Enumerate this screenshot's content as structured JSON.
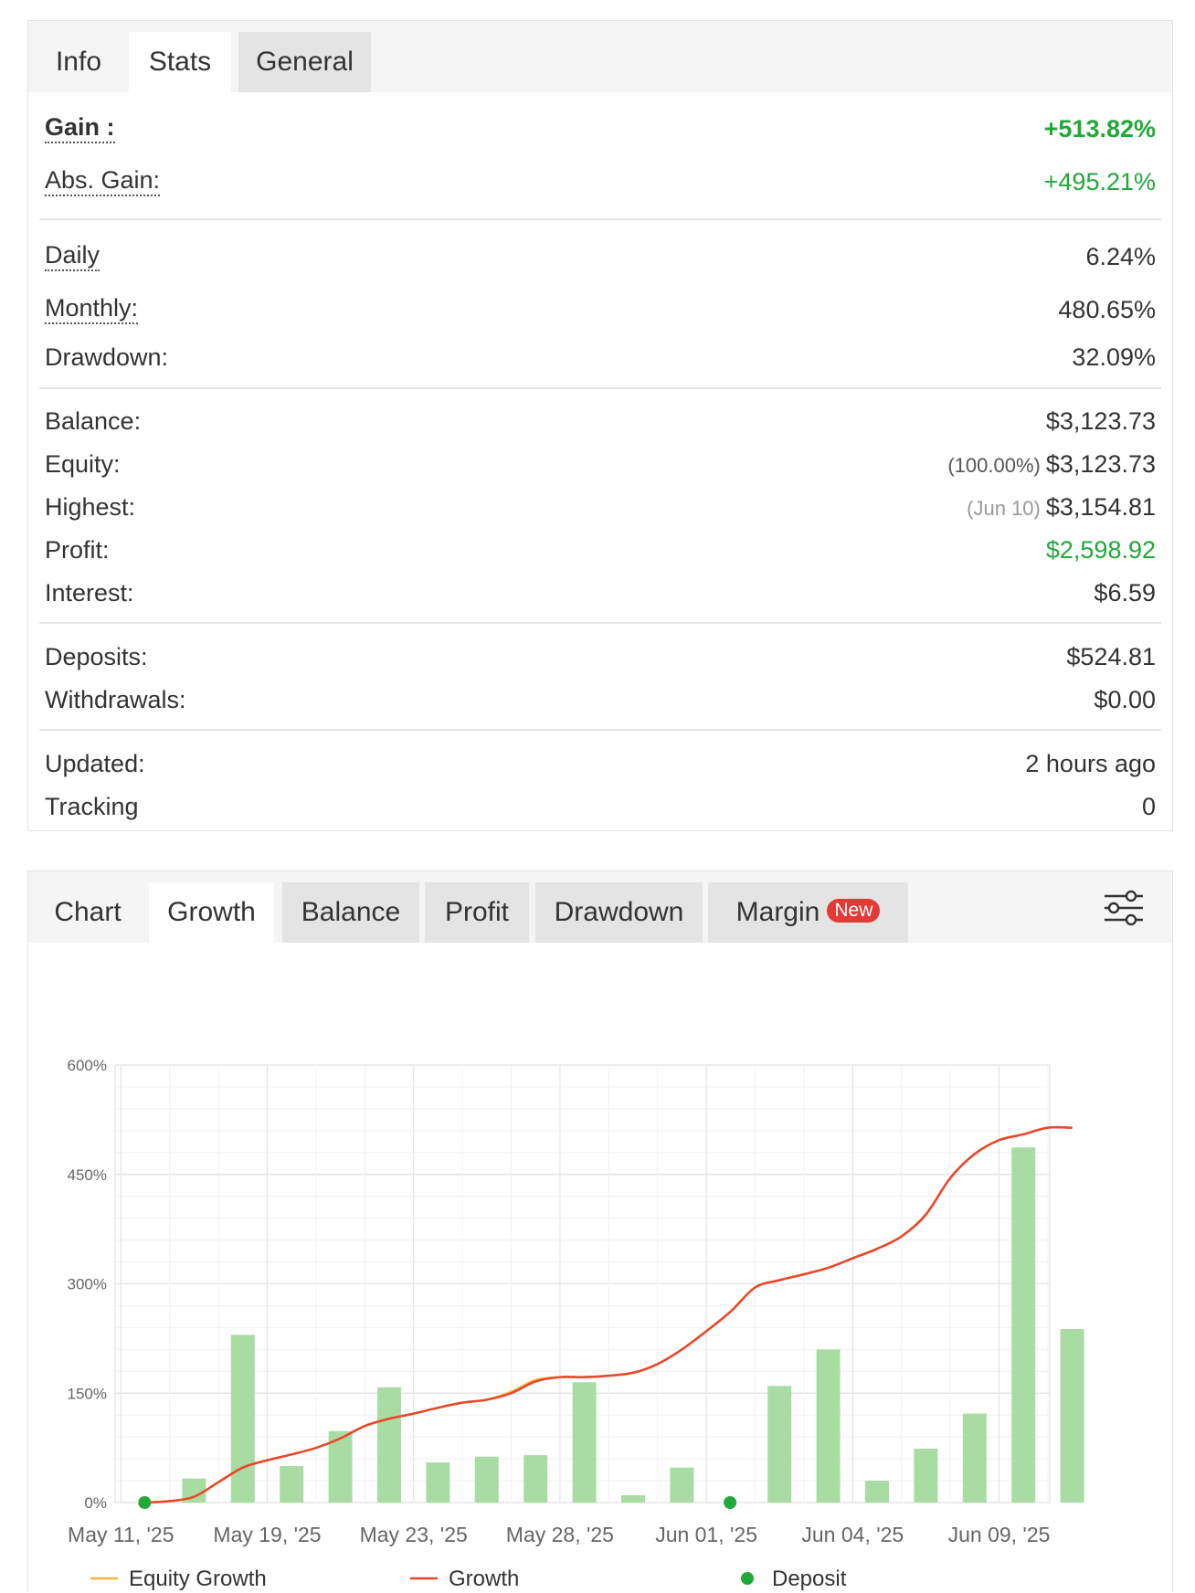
{
  "stats_panel": {
    "tabs": [
      {
        "label": "Info",
        "state": "label"
      },
      {
        "label": "Stats",
        "state": "active"
      },
      {
        "label": "General",
        "state": "inactive"
      }
    ],
    "gain": {
      "label": "Gain :",
      "value": "+513.82%"
    },
    "abs_gain": {
      "label": "Abs. Gain:",
      "value": "+495.21%"
    },
    "daily": {
      "label": "Daily",
      "value": "6.24%"
    },
    "monthly": {
      "label": "Monthly:",
      "value": "480.65%"
    },
    "drawdown": {
      "label": "Drawdown:",
      "value": "32.09%"
    },
    "balance": {
      "label": "Balance:",
      "value": "$3,123.73"
    },
    "equity": {
      "label": "Equity:",
      "sub": "(100.00%)",
      "value": "$3,123.73"
    },
    "highest": {
      "label": "Highest:",
      "sub": "(Jun 10)",
      "value": "$3,154.81"
    },
    "profit": {
      "label": "Profit:",
      "value": "$2,598.92"
    },
    "interest": {
      "label": "Interest:",
      "value": "$6.59"
    },
    "deposits": {
      "label": "Deposits:",
      "value": "$524.81"
    },
    "withdrawals": {
      "label": "Withdrawals:",
      "value": "$0.00"
    },
    "updated": {
      "label": "Updated:",
      "value": "2 hours ago"
    },
    "tracking": {
      "label": "Tracking",
      "value": "0"
    },
    "colors": {
      "positive": "#22a83a"
    }
  },
  "chart_panel": {
    "tabs": {
      "chart": "Chart",
      "growth": "Growth",
      "balance": "Balance",
      "profit": "Profit",
      "drawdown": "Drawdown",
      "margin": "Margin",
      "new_badge": "New"
    },
    "settings_icon": "sliders-icon"
  },
  "chart_data": {
    "type": "bar+line",
    "y_axis": {
      "min": 0,
      "max": 600,
      "ticks": [
        "0%",
        "150%",
        "300%",
        "450%",
        "600%"
      ],
      "tick_values": [
        0,
        150,
        300,
        450,
        600
      ]
    },
    "x_tick_labels": [
      "May 11, '25",
      "May 19, '25",
      "May 23, '25",
      "May 28, '25",
      "Jun 01, '25",
      "Jun 04, '25",
      "Jun 09, '25"
    ],
    "bars": {
      "color": "#a8dca3",
      "values": [
        33,
        230,
        50,
        98,
        158,
        55,
        63,
        65,
        165,
        10,
        48,
        160,
        210,
        30,
        74,
        122,
        487,
        238
      ],
      "day_index": [
        1,
        2,
        3,
        4,
        5,
        6,
        7,
        8,
        9,
        10,
        11,
        13,
        14,
        15,
        16,
        17,
        18,
        19
      ]
    },
    "growth": {
      "name": "Growth",
      "color": "#e8452c",
      "day_index": [
        0,
        0.5,
        1,
        1.5,
        2,
        2.5,
        3,
        3.5,
        4,
        4.5,
        5,
        5.5,
        6,
        6.5,
        7,
        7.5,
        8,
        8.5,
        9,
        9.5,
        10,
        10.5,
        11,
        11.5,
        12,
        12.5,
        13,
        13.5,
        14,
        14.5,
        15,
        15.5,
        16,
        16.5,
        17,
        17.5,
        18,
        18.5,
        19
      ],
      "values": [
        0,
        2,
        8,
        28,
        48,
        58,
        66,
        75,
        88,
        105,
        115,
        122,
        130,
        137,
        141,
        150,
        166,
        172,
        172,
        174,
        178,
        190,
        210,
        235,
        262,
        295,
        305,
        313,
        322,
        335,
        348,
        365,
        395,
        445,
        478,
        497,
        505,
        514,
        514
      ]
    },
    "equity_growth": {
      "name": "Equity Growth",
      "color": "#f5b63b",
      "day_index": [
        0,
        0.5,
        1,
        1.5,
        2,
        2.5,
        3,
        3.5,
        4,
        4.5,
        5,
        5.5,
        6,
        6.5,
        7,
        7.5,
        8,
        8.5,
        9,
        9.5,
        10,
        10.5,
        11,
        11.5,
        12,
        12.5,
        13,
        13.5,
        14,
        14.5,
        15,
        15.5,
        16,
        16.5,
        17,
        17.5,
        18,
        18.5,
        19
      ],
      "values": [
        0,
        2,
        8,
        28,
        48,
        58,
        66,
        75,
        88,
        105,
        115,
        122,
        130,
        137,
        141,
        152,
        168,
        172,
        172,
        174,
        178,
        190,
        210,
        235,
        262,
        295,
        305,
        313,
        322,
        335,
        348,
        365,
        395,
        445,
        478,
        497,
        505,
        514,
        514
      ]
    },
    "deposits": {
      "name": "Deposit",
      "color": "#22a83a",
      "day_index": [
        -0.5,
        11.5
      ],
      "values": [
        0,
        0
      ]
    },
    "legend": [
      {
        "name": "Equity Growth",
        "color": "#f5b63b",
        "kind": "line"
      },
      {
        "name": "Growth",
        "color": "#e8452c",
        "kind": "line"
      },
      {
        "name": "Deposit",
        "color": "#22a83a",
        "kind": "dot"
      }
    ],
    "grid": true
  }
}
